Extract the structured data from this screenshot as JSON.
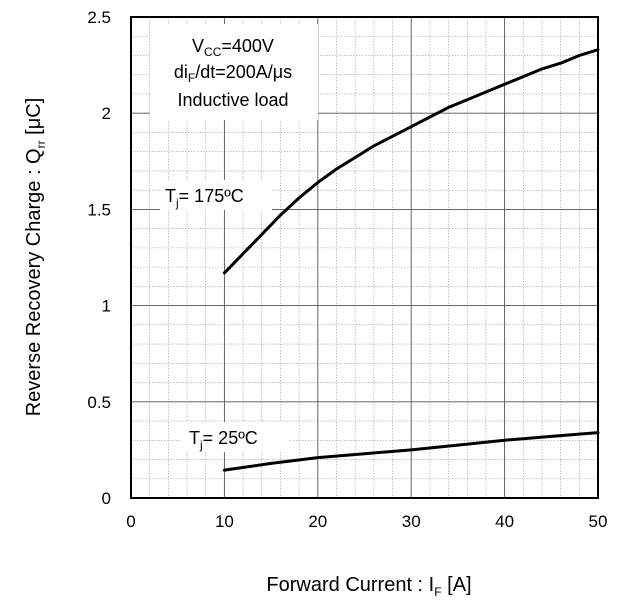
{
  "chart_data": {
    "type": "line",
    "xlabel": {
      "main": "Forward Current : I",
      "sub": "F",
      "tail": " [A]"
    },
    "ylabel": {
      "main": "Reverse Recovery Charge : Q",
      "sub": "rr",
      "tail": " [μC]"
    },
    "xlim": [
      0,
      50
    ],
    "ylim": [
      0,
      2.5
    ],
    "x_ticks": [
      "0",
      "10",
      "20",
      "30",
      "40",
      "50"
    ],
    "y_ticks": [
      "0",
      "0.5",
      "1",
      "1.5",
      "2",
      "2.5"
    ],
    "grid": true,
    "conditions": {
      "line1_main": "V",
      "line1_sub": "CC",
      "line1_tail": "=400V",
      "line2_main": "di",
      "line2_sub": "F",
      "line2_tail": "/dt=200A/μs",
      "line3": "Inductive load"
    },
    "series": [
      {
        "label_main": "T",
        "label_sub": "j",
        "label_tail": "= 175ºC",
        "x": [
          10,
          12,
          14,
          16,
          18,
          20,
          22,
          24,
          26,
          28,
          30,
          32,
          34,
          36,
          38,
          40,
          42,
          44,
          46,
          48,
          50
        ],
        "y": [
          1.17,
          1.27,
          1.37,
          1.47,
          1.56,
          1.64,
          1.71,
          1.77,
          1.83,
          1.88,
          1.93,
          1.98,
          2.03,
          2.07,
          2.11,
          2.15,
          2.19,
          2.23,
          2.26,
          2.3,
          2.33
        ]
      },
      {
        "label_main": "T",
        "label_sub": "j",
        "label_tail": "= 25ºC",
        "x": [
          10,
          15,
          20,
          25,
          30,
          35,
          40,
          45,
          50
        ],
        "y": [
          0.145,
          0.18,
          0.21,
          0.23,
          0.25,
          0.275,
          0.3,
          0.32,
          0.34
        ]
      }
    ]
  }
}
